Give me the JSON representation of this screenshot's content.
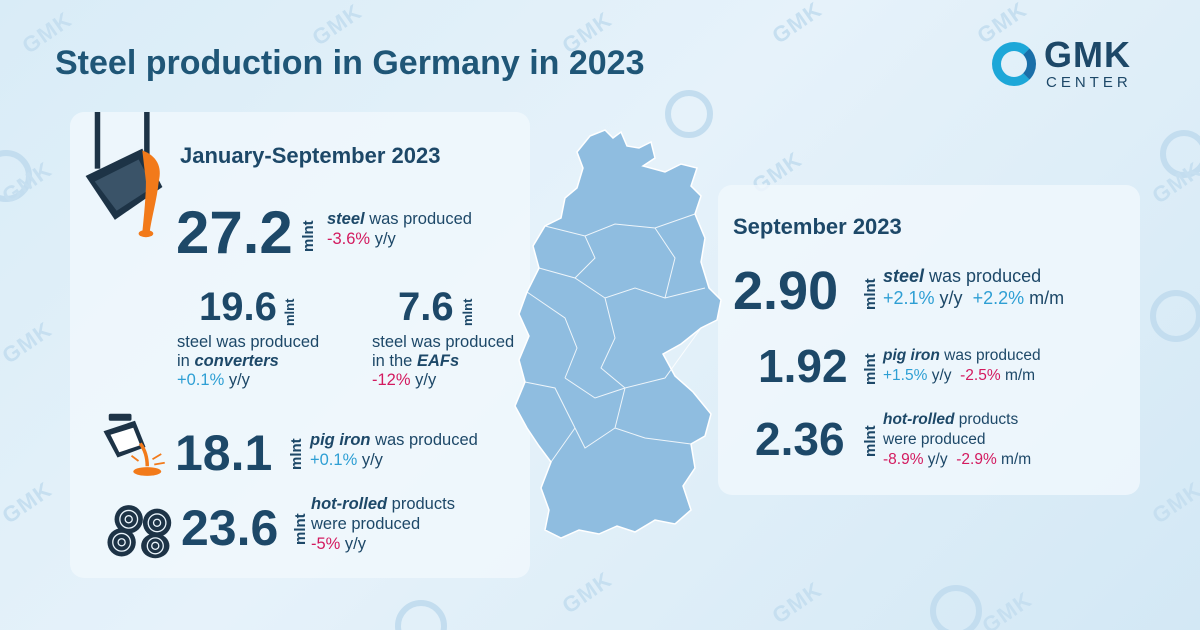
{
  "header": {
    "title": "Steel production in Germany in 2023"
  },
  "logo": {
    "line1": "GMK",
    "line2": "CENTER"
  },
  "watermark": "GMK",
  "colors": {
    "accent_blue": "#2e9fd4",
    "negative_red": "#d31a5f",
    "dark_text": "#1d4868",
    "map_fill": "#8fbde0"
  },
  "jan_sep": {
    "title": "January-September 2023",
    "steel": {
      "value": "27.2",
      "unit": "mlnt",
      "label_em": "steel",
      "label_rest": " was produced",
      "yoy": "-3.6%",
      "yoy_suffix": " y/y"
    },
    "converters": {
      "value": "19.6",
      "unit": "mlnt",
      "line1": "steel was produced",
      "line2_pre": "in ",
      "line2_em": "converters",
      "yoy": "+0.1%",
      "yoy_suffix": " y/y"
    },
    "eafs": {
      "value": "7.6",
      "unit": "mlnt",
      "line1": "steel was produced",
      "line2_pre": "in the ",
      "line2_em": "EAFs",
      "yoy": "-12%",
      "yoy_suffix": " y/y"
    },
    "pig_iron": {
      "value": "18.1",
      "unit": "mlnt",
      "label_em": "pig iron",
      "label_rest": " was produced",
      "yoy": "+0.1%",
      "yoy_suffix": " y/y"
    },
    "hot_rolled": {
      "value": "23.6",
      "unit": "mlnt",
      "label_em": "hot-rolled",
      "label_rest": " products",
      "line2": "were produced",
      "yoy": "-5%",
      "yoy_suffix": " y/y"
    }
  },
  "september": {
    "title": "September 2023",
    "steel": {
      "value": "2.90",
      "unit": "mlnt",
      "label_em": "steel",
      "label_rest": " was produced",
      "yoy": "+2.1%",
      "yoy_suffix": " y/y",
      "mom": "+2.2%",
      "mom_suffix": " m/m"
    },
    "pig_iron": {
      "value": "1.92",
      "unit": "mlnt",
      "label_em": "pig iron",
      "label_rest": " was produced",
      "yoy": "+1.5%",
      "yoy_suffix": " y/y",
      "mom": "-2.5%",
      "mom_suffix": " m/m"
    },
    "hot_rolled": {
      "value": "2.36",
      "unit": "mlnt",
      "label_em": "hot-rolled",
      "label_rest": " products",
      "line2": "were produced",
      "yoy": "-8.9%",
      "yoy_suffix": " y/y",
      "mom": "-2.9%",
      "mom_suffix": " m/m"
    }
  }
}
